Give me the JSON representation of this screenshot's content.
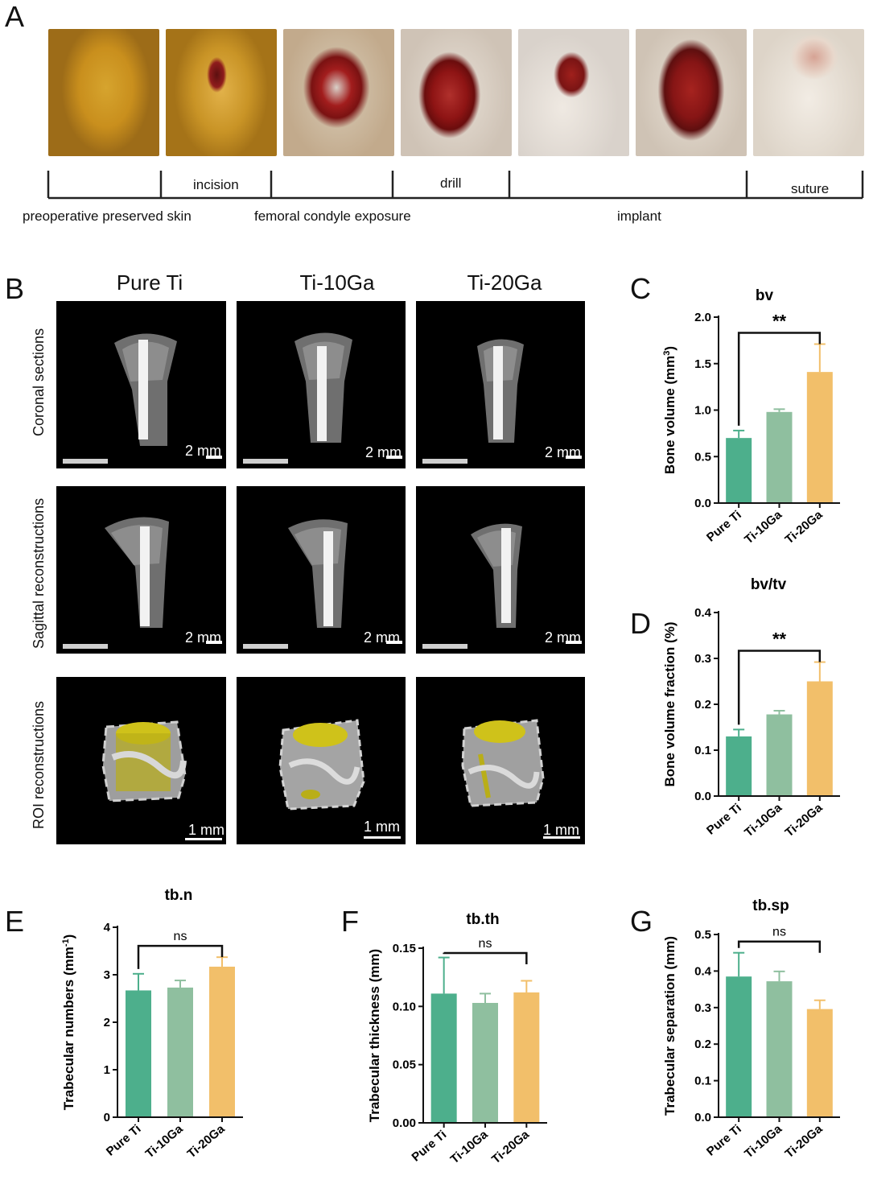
{
  "panel_letters": {
    "A": "A",
    "B": "B",
    "C": "C",
    "D": "D",
    "E": "E",
    "F": "F",
    "G": "G"
  },
  "surgery": {
    "steps": {
      "incision": "incision",
      "drill": "drill",
      "suture": "suture",
      "preop": "preoperative preserved skin",
      "exposure": "femoral condyle exposure",
      "implant": "implant"
    }
  },
  "microct": {
    "columns": [
      "Pure Ti",
      "Ti-10Ga",
      "Ti-20Ga"
    ],
    "rows": [
      "Coronal sections",
      "Sagittal reconstructions",
      "ROI reconstructions"
    ],
    "scales": [
      "2 mm",
      "2 mm",
      "1 mm"
    ]
  },
  "colors": {
    "pure_ti": "#4daf8c",
    "ti_10ga": "#8fbf9f",
    "ti_20ga": "#f2bf6a",
    "ct_bg": "#000000",
    "implant": "#cfc21a"
  },
  "chart_data": [
    {
      "id": "C",
      "type": "bar",
      "title": "bv",
      "ylabel": "Bone volume (mm",
      "ylabel_sup": "3",
      "ylabel_end": ")",
      "categories": [
        "Pure Ti",
        "Ti-10Ga",
        "Ti-20Ga"
      ],
      "values": [
        0.7,
        0.98,
        1.41
      ],
      "errors": [
        0.08,
        0.03,
        0.3
      ],
      "ylim": [
        0,
        2.0
      ],
      "ticks": [
        "0.0",
        "0.5",
        "1.0",
        "1.5",
        "2.0"
      ],
      "tick_values": [
        0,
        0.5,
        1.0,
        1.5,
        2.0
      ],
      "significance": {
        "from": 0,
        "to": 2,
        "label": "**"
      }
    },
    {
      "id": "D",
      "type": "bar",
      "title": "bv/tv",
      "ylabel": "Bone volume fraction (%)",
      "ylabel_sup": "",
      "ylabel_end": "",
      "categories": [
        "Pure Ti",
        "Ti-10Ga",
        "Ti-20Ga"
      ],
      "values": [
        0.13,
        0.178,
        0.25
      ],
      "errors": [
        0.015,
        0.008,
        0.042
      ],
      "ylim": [
        0,
        0.4
      ],
      "ticks": [
        "0.0",
        "0.1",
        "0.2",
        "0.3",
        "0.4"
      ],
      "tick_values": [
        0,
        0.1,
        0.2,
        0.3,
        0.4
      ],
      "significance": {
        "from": 0,
        "to": 2,
        "label": "**"
      }
    },
    {
      "id": "E",
      "type": "bar",
      "title": "tb.n",
      "ylabel": "Trabecular numbers (mm",
      "ylabel_sup": "-1",
      "ylabel_end": ")",
      "categories": [
        "Pure Ti",
        "Ti-10Ga",
        "Ti-20Ga"
      ],
      "values": [
        2.67,
        2.73,
        3.17
      ],
      "errors": [
        0.35,
        0.15,
        0.2
      ],
      "ylim": [
        0,
        4
      ],
      "ticks": [
        "0",
        "1",
        "2",
        "3",
        "4"
      ],
      "tick_values": [
        0,
        1,
        2,
        3,
        4
      ],
      "significance": {
        "from": 0,
        "to": 2,
        "label": "ns"
      }
    },
    {
      "id": "F",
      "type": "bar",
      "title": "tb.th",
      "ylabel": "Trabecular thickness (mm)",
      "ylabel_sup": "",
      "ylabel_end": "",
      "categories": [
        "Pure Ti",
        "Ti-10Ga",
        "Ti-20Ga"
      ],
      "values": [
        0.111,
        0.103,
        0.112
      ],
      "errors": [
        0.031,
        0.008,
        0.01
      ],
      "ylim": [
        0,
        0.15
      ],
      "ticks": [
        "0.00",
        "0.05",
        "0.10",
        "0.15"
      ],
      "tick_values": [
        0,
        0.05,
        0.1,
        0.15
      ],
      "significance": {
        "from": 0,
        "to": 2,
        "label": "ns"
      }
    },
    {
      "id": "G",
      "type": "bar",
      "title": "tb.sp",
      "ylabel": "Trabecular separation (mm)",
      "ylabel_sup": "",
      "ylabel_end": "",
      "categories": [
        "Pure Ti",
        "Ti-10Ga",
        "Ti-20Ga"
      ],
      "values": [
        0.385,
        0.372,
        0.296
      ],
      "errors": [
        0.065,
        0.027,
        0.024
      ],
      "ylim": [
        0,
        0.5
      ],
      "ticks": [
        "0.0",
        "0.1",
        "0.2",
        "0.3",
        "0.4",
        "0.5"
      ],
      "tick_values": [
        0,
        0.1,
        0.2,
        0.3,
        0.4,
        0.5
      ],
      "significance": {
        "from": 0,
        "to": 2,
        "label": "ns"
      }
    }
  ]
}
